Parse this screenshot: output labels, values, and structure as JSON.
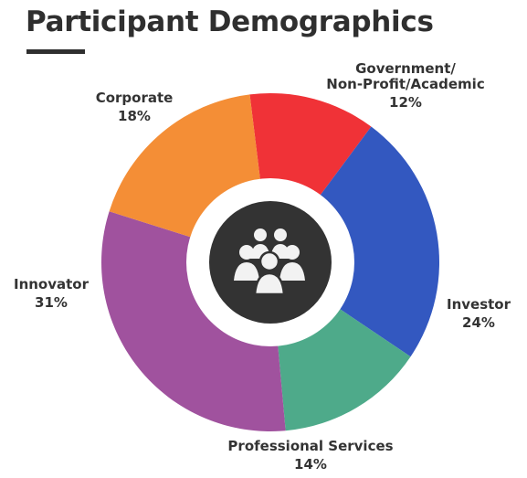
{
  "title": "Participant Demographics",
  "colors": {
    "title": "#2f2f2f",
    "center_circle": "#333333",
    "label": "#333333"
  },
  "center_icon": "people-group-icon",
  "chart_data": {
    "type": "pie",
    "title": "Participant Demographics",
    "unit": "%",
    "slices": [
      {
        "label": "Government/ Non-Profit/Academic",
        "value": 12,
        "value_label": "12%",
        "color": "#f03237"
      },
      {
        "label": "Investor",
        "value": 24,
        "value_label": "24%",
        "color": "#3358c0"
      },
      {
        "label": "Professional Services",
        "value": 14,
        "value_label": "14%",
        "color": "#4eaa8a"
      },
      {
        "label": "Innovator",
        "value": 31,
        "value_label": "31%",
        "color": "#a0529e"
      },
      {
        "label": "Corporate",
        "value": 18,
        "value_label": "18%",
        "color": "#f48e36"
      }
    ]
  }
}
